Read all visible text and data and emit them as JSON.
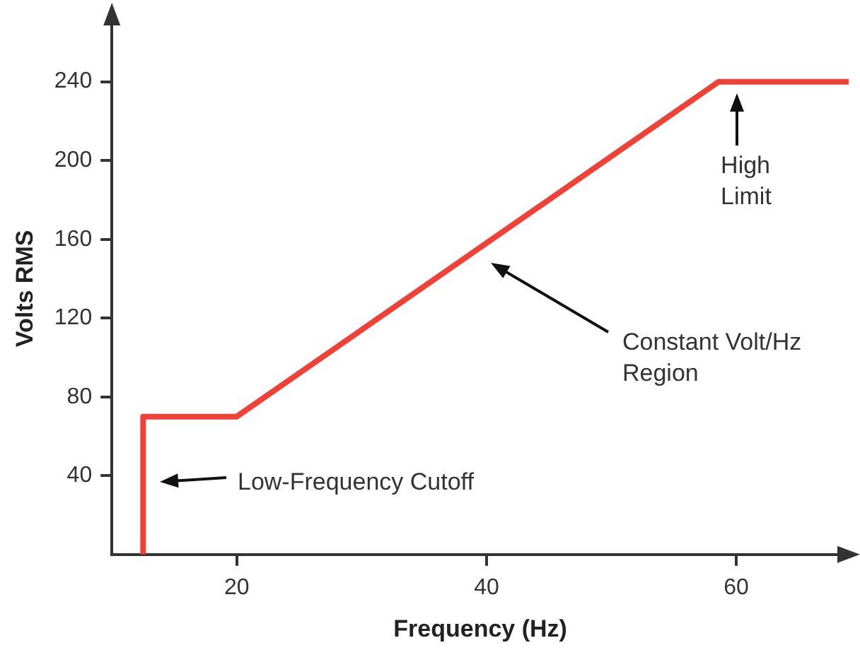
{
  "chart_data": {
    "type": "line",
    "xlabel": "Frequency (Hz)",
    "ylabel": "Volts RMS",
    "xlim": [
      10,
      69
    ],
    "xticks": [
      20,
      40,
      60
    ],
    "ylim": [
      0,
      270
    ],
    "yticks": [
      40,
      80,
      120,
      160,
      200,
      240
    ],
    "grid": false,
    "legend": false,
    "marker": "none",
    "line_style": "solid",
    "series": [
      {
        "color": "#ef4136",
        "x": [
          12.5,
          12.5,
          20,
          58.6,
          69
        ],
        "values": [
          0,
          70,
          70,
          240,
          240
        ]
      }
    ],
    "annotations": [
      "Low-Frequency Cutoff",
      "Constant Volt/Hz\nRegion",
      {
        "text": "High\nLimit",
        "x": 60,
        "y": 240
      }
    ]
  }
}
